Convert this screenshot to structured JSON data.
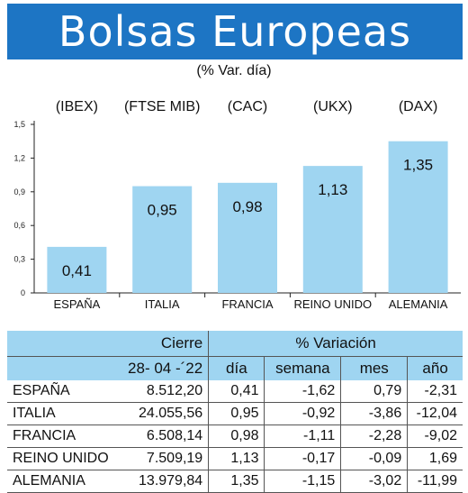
{
  "header": {
    "title": "Bolsas Europeas",
    "subtitle": "(% Var. día)"
  },
  "chart_data": {
    "type": "bar",
    "categories": [
      "ESPAÑA",
      "ITALIA",
      "FRANCIA",
      "REINO UNIDO",
      "ALEMANIA"
    ],
    "index_labels": [
      "(IBEX)",
      "(FTSE MIB)",
      "(CAC)",
      "(UKX)",
      "(DAX)"
    ],
    "values": [
      0.41,
      0.95,
      0.98,
      1.13,
      1.35
    ],
    "value_labels": [
      "0,41",
      "0,95",
      "0,98",
      "1,13",
      "1,35"
    ],
    "yticks": [
      0,
      0.3,
      0.6,
      0.9,
      1.2,
      1.5
    ],
    "ytick_labels": [
      "0",
      "0,3",
      "0,6",
      "0,9",
      "1,2",
      "1,5"
    ],
    "ylim": [
      0,
      1.5
    ],
    "bar_color": "#9fd5f1",
    "grid": false
  },
  "table": {
    "group_cierre": "Cierre",
    "group_variacion": "% Variación",
    "date": "28- 04 -´22",
    "col_dia": "día",
    "col_semana": "semana",
    "col_mes": "mes",
    "col_ano": "año",
    "rows": [
      {
        "pais": "ESPAÑA",
        "cierre": "8.512,20",
        "dia": "0,41",
        "semana": "-1,62",
        "mes": "0,79",
        "ano": "-2,31"
      },
      {
        "pais": "ITALIA",
        "cierre": "24.055,56",
        "dia": "0,95",
        "semana": "-0,92",
        "mes": "-3,86",
        "ano": "-12,04"
      },
      {
        "pais": "FRANCIA",
        "cierre": "6.508,14",
        "dia": "0,98",
        "semana": "-1,11",
        "mes": "-2,28",
        "ano": "-9,02"
      },
      {
        "pais": "REINO UNIDO",
        "cierre": "7.509,19",
        "dia": "1,13",
        "semana": "-0,17",
        "mes": "-0,09",
        "ano": "1,69"
      },
      {
        "pais": "ALEMANIA",
        "cierre": "13.979,84",
        "dia": "1,35",
        "semana": "-1,15",
        "mes": "-3,02",
        "ano": "-11,99"
      }
    ],
    "header_color": "#9fd5f1"
  }
}
